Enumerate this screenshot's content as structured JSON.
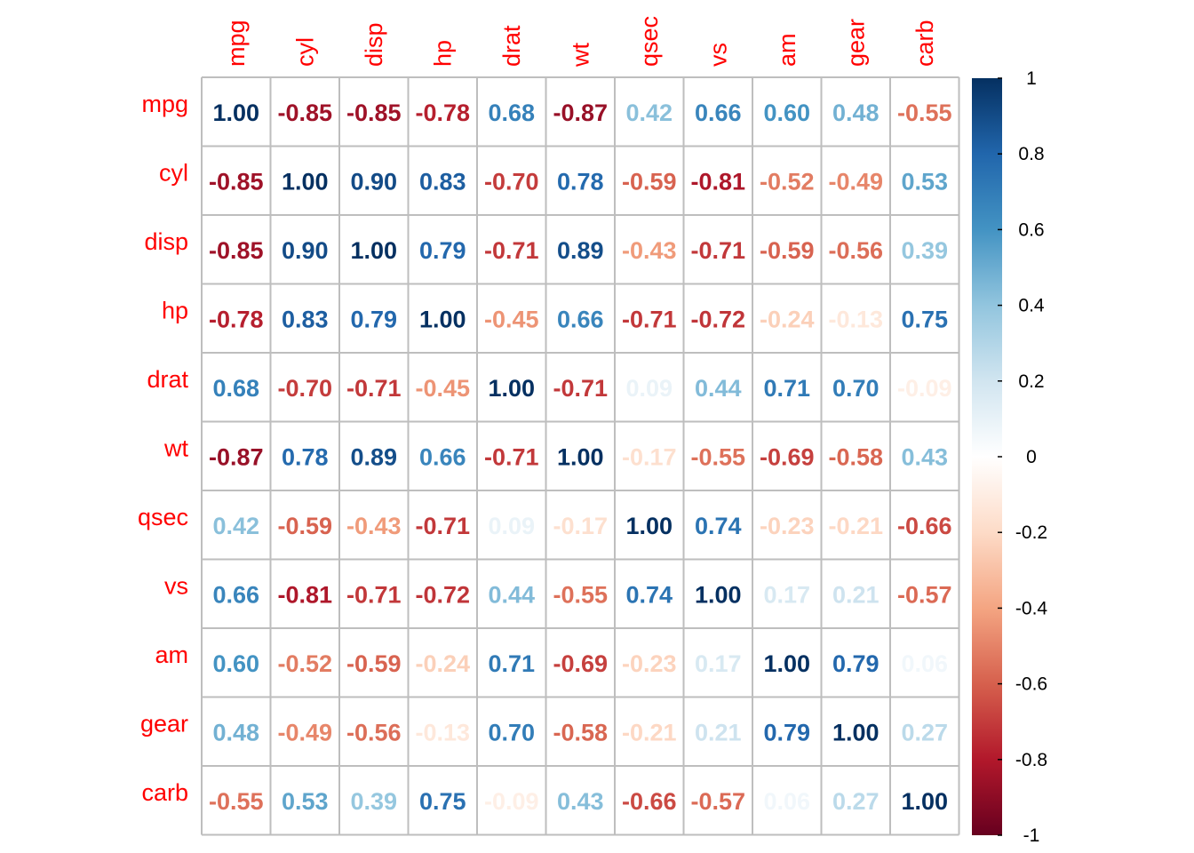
{
  "chart_data": {
    "type": "heatmap",
    "variables": [
      "mpg",
      "cyl",
      "disp",
      "hp",
      "drat",
      "wt",
      "qsec",
      "vs",
      "am",
      "gear",
      "carb"
    ],
    "matrix": [
      [
        "1.00",
        "-0.85",
        "-0.85",
        "-0.78",
        "0.68",
        "-0.87",
        "0.42",
        "0.66",
        "0.60",
        "0.48",
        "-0.55"
      ],
      [
        "-0.85",
        "1.00",
        "0.90",
        "0.83",
        "-0.70",
        "0.78",
        "-0.59",
        "-0.81",
        "-0.52",
        "-0.49",
        "0.53"
      ],
      [
        "-0.85",
        "0.90",
        "1.00",
        "0.79",
        "-0.71",
        "0.89",
        "-0.43",
        "-0.71",
        "-0.59",
        "-0.56",
        "0.39"
      ],
      [
        "-0.78",
        "0.83",
        "0.79",
        "1.00",
        "-0.45",
        "0.66",
        "-0.71",
        "-0.72",
        "-0.24",
        "-0.13",
        "0.75"
      ],
      [
        "0.68",
        "-0.70",
        "-0.71",
        "-0.45",
        "1.00",
        "-0.71",
        "0.09",
        "0.44",
        "0.71",
        "0.70",
        "-0.09"
      ],
      [
        "-0.87",
        "0.78",
        "0.89",
        "0.66",
        "-0.71",
        "1.00",
        "-0.17",
        "-0.55",
        "-0.69",
        "-0.58",
        "0.43"
      ],
      [
        "0.42",
        "-0.59",
        "-0.43",
        "-0.71",
        "0.09",
        "-0.17",
        "1.00",
        "0.74",
        "-0.23",
        "-0.21",
        "-0.66"
      ],
      [
        "0.66",
        "-0.81",
        "-0.71",
        "-0.72",
        "0.44",
        "-0.55",
        "0.74",
        "1.00",
        "0.17",
        "0.21",
        "-0.57"
      ],
      [
        "0.60",
        "-0.52",
        "-0.59",
        "-0.24",
        "0.71",
        "-0.69",
        "-0.23",
        "0.17",
        "1.00",
        "0.79",
        "0.06"
      ],
      [
        "0.48",
        "-0.49",
        "-0.56",
        "-0.13",
        "0.70",
        "-0.58",
        "-0.21",
        "0.21",
        "0.79",
        "1.00",
        "0.27"
      ],
      [
        "-0.55",
        "0.53",
        "0.39",
        "0.75",
        "-0.09",
        "0.43",
        "-0.66",
        "-0.57",
        "0.06",
        "0.27",
        "1.00"
      ]
    ],
    "colorbar": {
      "ticks": [
        "1",
        "0.8",
        "0.6",
        "0.4",
        "0.2",
        "0",
        "-0.2",
        "-0.4",
        "-0.6",
        "-0.8",
        "-1"
      ],
      "range": [
        -1,
        1
      ]
    },
    "palette": [
      "#67001f",
      "#b2182b",
      "#d6604d",
      "#f4a582",
      "#fddbc7",
      "#ffffff",
      "#d1e5f0",
      "#92c5de",
      "#4393c3",
      "#2166ac",
      "#053061"
    ],
    "label_color": "#ff0000",
    "grid_color": "#bebebe"
  }
}
